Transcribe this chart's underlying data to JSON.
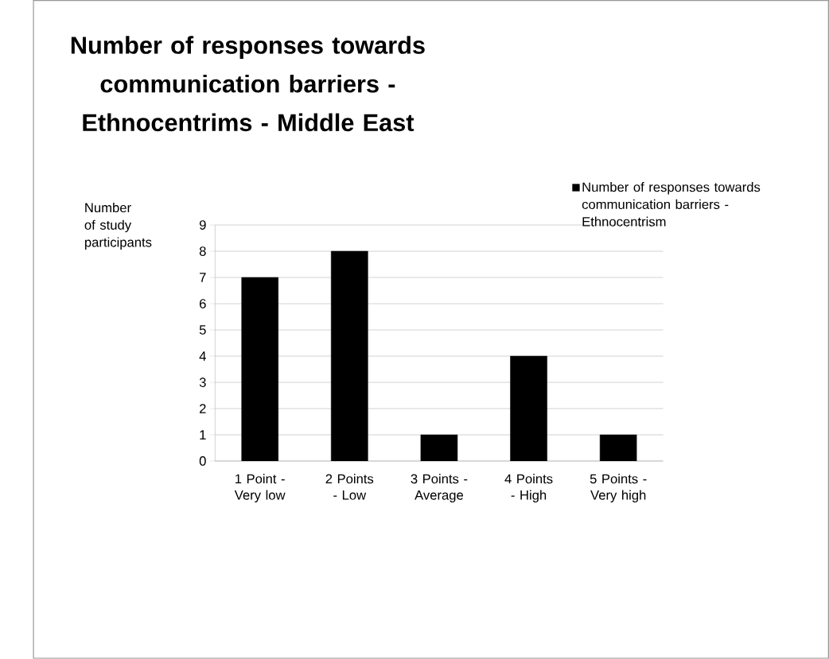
{
  "chart_data": {
    "type": "bar",
    "title": "Number of responses towards communication barriers - Ethnocentrims - Middle East",
    "ylabel": "Number of study participants",
    "categories": [
      "1 Point - Very low",
      "2 Points - Low",
      "3 Points - Average",
      "4 Points - High",
      "5 Points - Very high"
    ],
    "series": [
      {
        "name": "Number of responses towards communication barriers - Ethnocentrism",
        "color": "#000000",
        "values": [
          7,
          8,
          1,
          4,
          1
        ]
      }
    ],
    "ylim": [
      0,
      9
    ],
    "yticks": [
      0,
      1,
      2,
      3,
      4,
      5,
      6,
      7,
      8,
      9
    ],
    "grid": "y",
    "legend": "top right"
  }
}
